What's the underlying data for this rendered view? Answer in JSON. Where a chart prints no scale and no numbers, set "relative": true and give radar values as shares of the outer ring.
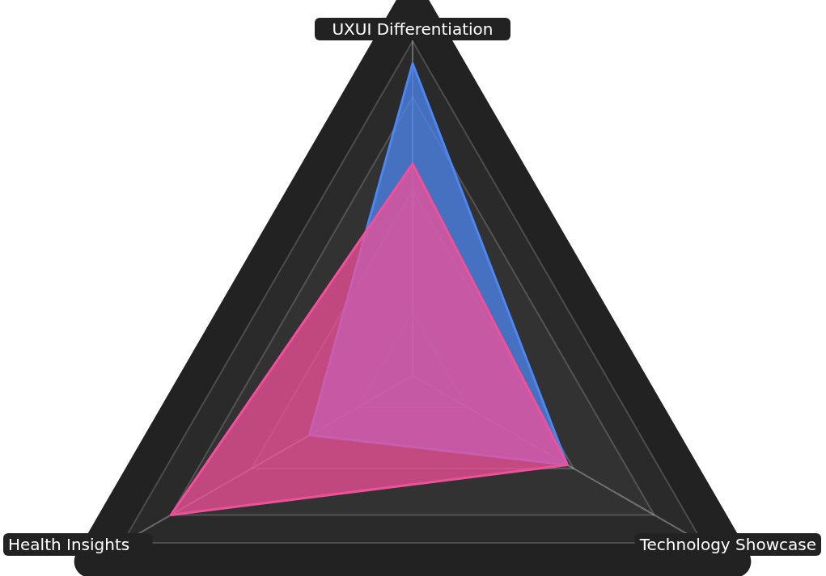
{
  "chart_data": {
    "type": "radar",
    "relative": true,
    "categories": [
      "UXUI Differentiation",
      "Technology Showcase",
      "Health Insights"
    ],
    "series": [
      {
        "color": "#4d86f0",
        "values": [
          0.84,
          0.48,
          0.32
        ]
      },
      {
        "color": "#f0509a",
        "values": [
          0.57,
          0.48,
          0.75
        ]
      }
    ],
    "grid": true
  }
}
